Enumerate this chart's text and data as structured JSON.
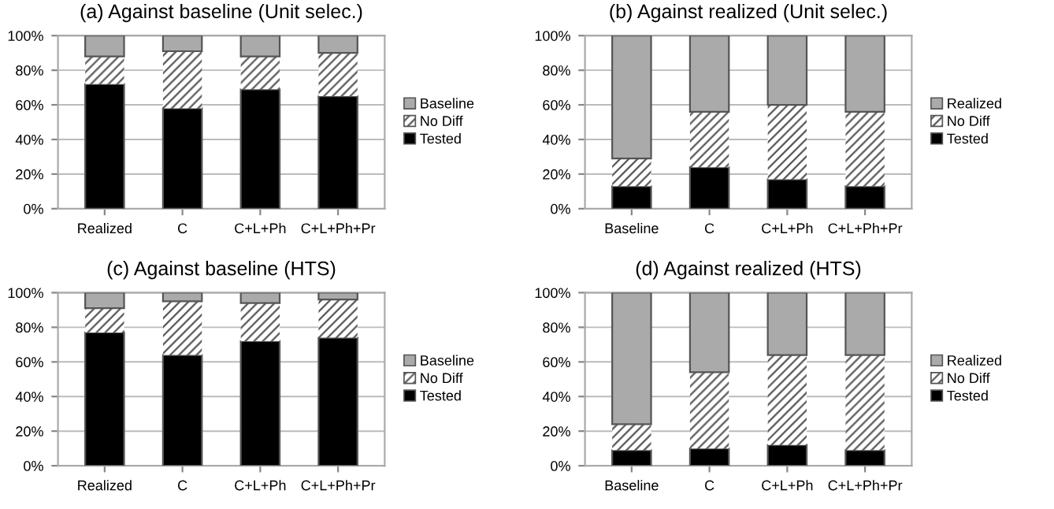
{
  "chart_data": [
    {
      "type": "bar",
      "stacked": true,
      "title": "(a) Against baseline (Unit selec.)",
      "categories": [
        "Realized",
        "C",
        "C+L+Ph",
        "C+L+Ph+Pr"
      ],
      "series": [
        {
          "name": "Tested",
          "color": "#000000",
          "values": [
            72,
            58,
            69,
            65
          ]
        },
        {
          "name": "No Diff",
          "color": "#ffffff",
          "values": [
            16,
            33,
            19,
            25
          ]
        },
        {
          "name": "Baseline",
          "color": "#aaaaaa",
          "values": [
            12,
            9,
            12,
            10
          ]
        }
      ],
      "ylim": [
        0,
        100
      ],
      "yticks": [
        {
          "value": 0,
          "label": "0%"
        },
        {
          "value": 20,
          "label": "20%"
        },
        {
          "value": 40,
          "label": "40%"
        },
        {
          "value": 60,
          "label": "60%"
        },
        {
          "value": 80,
          "label": "80%"
        },
        {
          "value": 100,
          "label": "100%"
        }
      ],
      "grid": "y",
      "legend": "right"
    },
    {
      "type": "bar",
      "stacked": true,
      "title": "(b) Against realized (Unit selec.)",
      "categories": [
        "Baseline",
        "C",
        "C+L+Ph",
        "C+L+Ph+Pr"
      ],
      "series": [
        {
          "name": "Tested",
          "color": "#000000",
          "values": [
            13,
            24,
            17,
            13
          ]
        },
        {
          "name": "No Diff",
          "color": "#ffffff",
          "values": [
            16,
            32,
            43,
            43
          ]
        },
        {
          "name": "Realized",
          "color": "#aaaaaa",
          "values": [
            71,
            44,
            40,
            44
          ]
        }
      ],
      "ylim": [
        0,
        100
      ],
      "yticks": [
        {
          "value": 0,
          "label": "0%"
        },
        {
          "value": 20,
          "label": "20%"
        },
        {
          "value": 40,
          "label": "40%"
        },
        {
          "value": 60,
          "label": "60%"
        },
        {
          "value": 80,
          "label": "80%"
        },
        {
          "value": 100,
          "label": "100%"
        }
      ],
      "grid": "y",
      "legend": "right"
    },
    {
      "type": "bar",
      "stacked": true,
      "title": "(c) Against baseline (HTS)",
      "categories": [
        "Realized",
        "C",
        "C+L+Ph",
        "C+L+Ph+Pr"
      ],
      "series": [
        {
          "name": "Tested",
          "color": "#000000",
          "values": [
            77,
            64,
            72,
            74
          ]
        },
        {
          "name": "No Diff",
          "color": "#ffffff",
          "values": [
            14,
            31,
            22,
            22
          ]
        },
        {
          "name": "Baseline",
          "color": "#aaaaaa",
          "values": [
            9,
            5,
            6,
            4
          ]
        }
      ],
      "ylim": [
        0,
        100
      ],
      "yticks": [
        {
          "value": 0,
          "label": "0%"
        },
        {
          "value": 20,
          "label": "20%"
        },
        {
          "value": 40,
          "label": "40%"
        },
        {
          "value": 60,
          "label": "60%"
        },
        {
          "value": 80,
          "label": "80%"
        },
        {
          "value": 100,
          "label": "100%"
        }
      ],
      "grid": "y",
      "legend": "right"
    },
    {
      "type": "bar",
      "stacked": true,
      "title": "(d) Against realized (HTS)",
      "categories": [
        "Baseline",
        "C",
        "C+L+Ph",
        "C+L+Ph+Pr"
      ],
      "series": [
        {
          "name": "Tested",
          "color": "#000000",
          "values": [
            9,
            10,
            12,
            9
          ]
        },
        {
          "name": "No Diff",
          "color": "#ffffff",
          "values": [
            15,
            44,
            52,
            55
          ]
        },
        {
          "name": "Realized",
          "color": "#aaaaaa",
          "values": [
            76,
            46,
            36,
            36
          ]
        }
      ],
      "ylim": [
        0,
        100
      ],
      "yticks": [
        {
          "value": 0,
          "label": "0%"
        },
        {
          "value": 20,
          "label": "20%"
        },
        {
          "value": 40,
          "label": "40%"
        },
        {
          "value": 60,
          "label": "60%"
        },
        {
          "value": 80,
          "label": "80%"
        },
        {
          "value": 100,
          "label": "100%"
        }
      ],
      "grid": "y",
      "legend": "right"
    }
  ]
}
